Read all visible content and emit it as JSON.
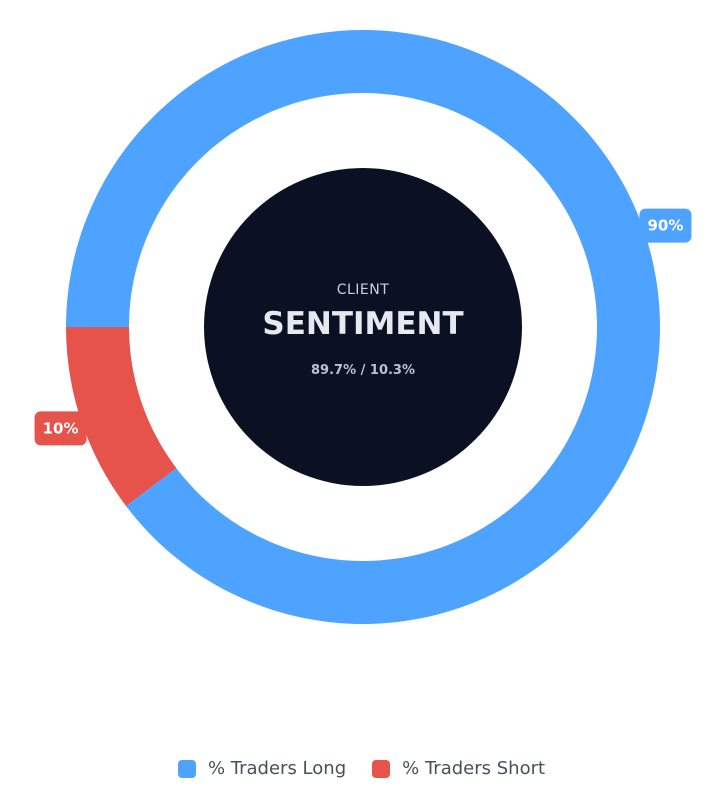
{
  "chart_data": {
    "type": "pie",
    "variant": "donut",
    "categories": [
      "% Traders Long",
      "% Traders Short"
    ],
    "values": [
      89.7,
      10.3
    ],
    "slice_labels": [
      "90%",
      "10%"
    ],
    "colors": [
      "#4da3ff",
      "#e5534b"
    ],
    "center": {
      "kicker": "CLIENT",
      "title": "SENTIMENT",
      "subtitle": "89.7% / 10.3%",
      "fill_color": "#0b1122"
    },
    "legend": {
      "position": "bottom",
      "entries": [
        "% Traders Long",
        "% Traders Short"
      ]
    }
  }
}
